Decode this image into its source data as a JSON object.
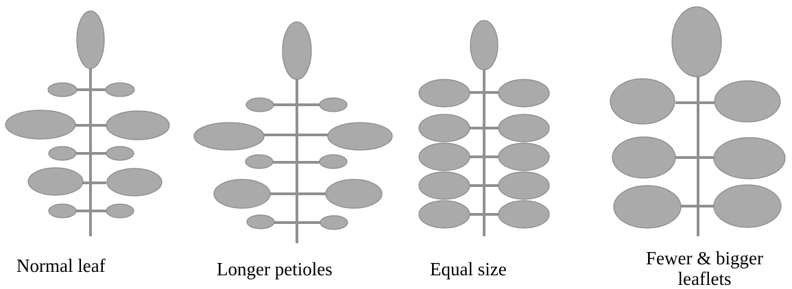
{
  "diagram": {
    "colors": {
      "leaflet_fill": "#aaaaaa",
      "leaflet_stroke": "#888888",
      "stem": "#909090",
      "text": "#000000",
      "background": "#ffffff"
    },
    "panels": [
      {
        "id": "normal",
        "label": "Normal leaf"
      },
      {
        "id": "longer-petioles",
        "label": "Longer petioles"
      },
      {
        "id": "equal-size",
        "label": "Equal size"
      },
      {
        "id": "fewer-bigger",
        "label_line1": "Fewer & bigger",
        "label_line2": "leaflets"
      }
    ]
  }
}
